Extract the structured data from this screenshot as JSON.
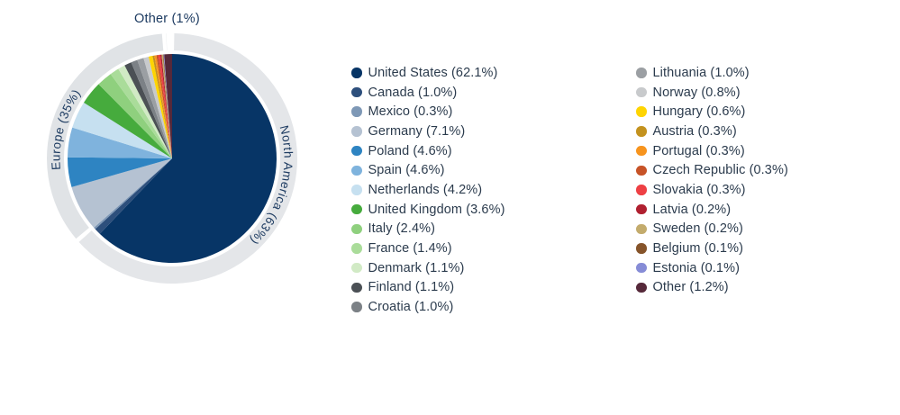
{
  "chart_data": {
    "type": "pie",
    "title": "",
    "orientation": "starts at 12 o'clock, clockwise",
    "total": 99.9,
    "slices": [
      {
        "label": "United States",
        "value": 62.1,
        "display": "United States (62.1%)",
        "color": "#073566"
      },
      {
        "label": "Canada",
        "value": 1.0,
        "display": "Canada (1.0%)",
        "color": "#2d4f7c"
      },
      {
        "label": "Mexico",
        "value": 0.3,
        "display": "Mexico (0.3%)",
        "color": "#7e98b6"
      },
      {
        "label": "Germany",
        "value": 7.1,
        "display": "Germany (7.1%)",
        "color": "#b5c2d2"
      },
      {
        "label": "Poland",
        "value": 4.6,
        "display": "Poland (4.6%)",
        "color": "#2e84c2"
      },
      {
        "label": "Spain",
        "value": 4.6,
        "display": "Spain (4.6%)",
        "color": "#7fb3dd"
      },
      {
        "label": "Netherlands",
        "value": 4.2,
        "display": "Netherlands (4.2%)",
        "color": "#c6e0f0"
      },
      {
        "label": "United Kingdom",
        "value": 3.6,
        "display": "United Kingdom (3.6%)",
        "color": "#46ab3d"
      },
      {
        "label": "Italy",
        "value": 2.4,
        "display": "Italy (2.4%)",
        "color": "#8fd07e"
      },
      {
        "label": "France",
        "value": 1.4,
        "display": "France (1.4%)",
        "color": "#aadc9a"
      },
      {
        "label": "Denmark",
        "value": 1.1,
        "display": "Denmark (1.1%)",
        "color": "#d1eac5"
      },
      {
        "label": "Finland",
        "value": 1.1,
        "display": "Finland  (1.1%)",
        "color": "#4b5055"
      },
      {
        "label": "Croatia",
        "value": 1.0,
        "display": "Croatia (1.0%)",
        "color": "#7c8186"
      },
      {
        "label": "Lithuania",
        "value": 1.0,
        "display": "Lithuania  (1.0%)",
        "color": "#9b9fa3"
      },
      {
        "label": "Norway",
        "value": 0.8,
        "display": "Norway (0.8%)",
        "color": "#c8cacc"
      },
      {
        "label": "Hungary",
        "value": 0.6,
        "display": "Hungary (0.6%)",
        "color": "#fed402"
      },
      {
        "label": "Austria",
        "value": 0.3,
        "display": "Austria (0.3%)",
        "color": "#c3921e"
      },
      {
        "label": "Portugal",
        "value": 0.3,
        "display": "Portugal (0.3%)",
        "color": "#f7941e"
      },
      {
        "label": "Czech Republic",
        "value": 0.3,
        "display": "Czech Republic (0.3%)",
        "color": "#c75327"
      },
      {
        "label": "Slovakia",
        "value": 0.3,
        "display": "Slovakia (0.3%)",
        "color": "#ee4044"
      },
      {
        "label": "Latvia",
        "value": 0.2,
        "display": "Latvia (0.2%)",
        "color": "#b02030"
      },
      {
        "label": "Sweden",
        "value": 0.2,
        "display": "Sweden (0.2%)",
        "color": "#c3ab6c"
      },
      {
        "label": "Belgium",
        "value": 0.1,
        "display": "Belgium (0.1%)",
        "color": "#86542a"
      },
      {
        "label": "Estonia",
        "value": 0.1,
        "display": "Estonia (0.1%)",
        "color": "#868cd6"
      },
      {
        "label": "Other",
        "value": 1.2,
        "display": "Other (1.2%)",
        "color": "#56293a"
      }
    ],
    "ring_groups": [
      {
        "label": "North America (63%)",
        "value": 63,
        "color": "#e4e6e9"
      },
      {
        "label": "Europe (35%)",
        "value": 35,
        "color": "#e0e3e6"
      },
      {
        "label": "Other (1%)",
        "value": 1,
        "color": "#e9ebee"
      }
    ],
    "legend": {
      "column1_count": 13,
      "column2_count": 12
    },
    "colors": {
      "ring_label_text": "#1d3b61",
      "legend_text": "#2b3b4d"
    }
  }
}
